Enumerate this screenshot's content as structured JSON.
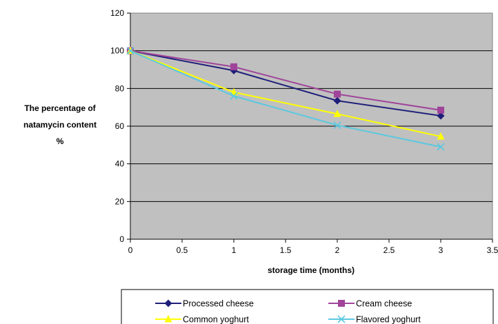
{
  "chart_data": {
    "type": "line",
    "xlabel": "storage time (months)",
    "ylabel_lines": [
      "The percentage of",
      "natamycin content",
      "%"
    ],
    "xlim": [
      0,
      3.5
    ],
    "ylim": [
      0,
      120
    ],
    "xticks": [
      0,
      0.5,
      1,
      1.5,
      2,
      2.5,
      3,
      3.5
    ],
    "xtick_labels": [
      "0",
      "0.5",
      "1",
      "1.5",
      "2",
      "2.5",
      "3",
      "3.5"
    ],
    "yticks": [
      0,
      20,
      40,
      60,
      80,
      100,
      120
    ],
    "ytick_labels": [
      "0",
      "20",
      "40",
      "60",
      "80",
      "100",
      "120"
    ],
    "grid": "horizontal",
    "plot_background": "#c0c0c0",
    "legend_position": "bottom",
    "series": [
      {
        "name": "Processed cheese",
        "x": [
          0,
          1,
          2,
          3
        ],
        "y": [
          100,
          89.5,
          73.5,
          65.5
        ],
        "color": "#1f1f7a",
        "marker": "diamond"
      },
      {
        "name": "Cream cheese",
        "x": [
          0,
          1,
          2,
          3
        ],
        "y": [
          100,
          91.5,
          77,
          68.5
        ],
        "color": "#a0449a",
        "marker": "square"
      },
      {
        "name": "Common yoghurt",
        "x": [
          0,
          1,
          2,
          3
        ],
        "y": [
          100,
          78,
          66.5,
          54.5
        ],
        "color": "#ffff00",
        "marker": "triangle"
      },
      {
        "name": "Flavored yoghurt",
        "x": [
          0,
          1,
          2,
          3
        ],
        "y": [
          100,
          76,
          60.5,
          49
        ],
        "color": "#5bc8e0",
        "marker": "x"
      }
    ]
  }
}
